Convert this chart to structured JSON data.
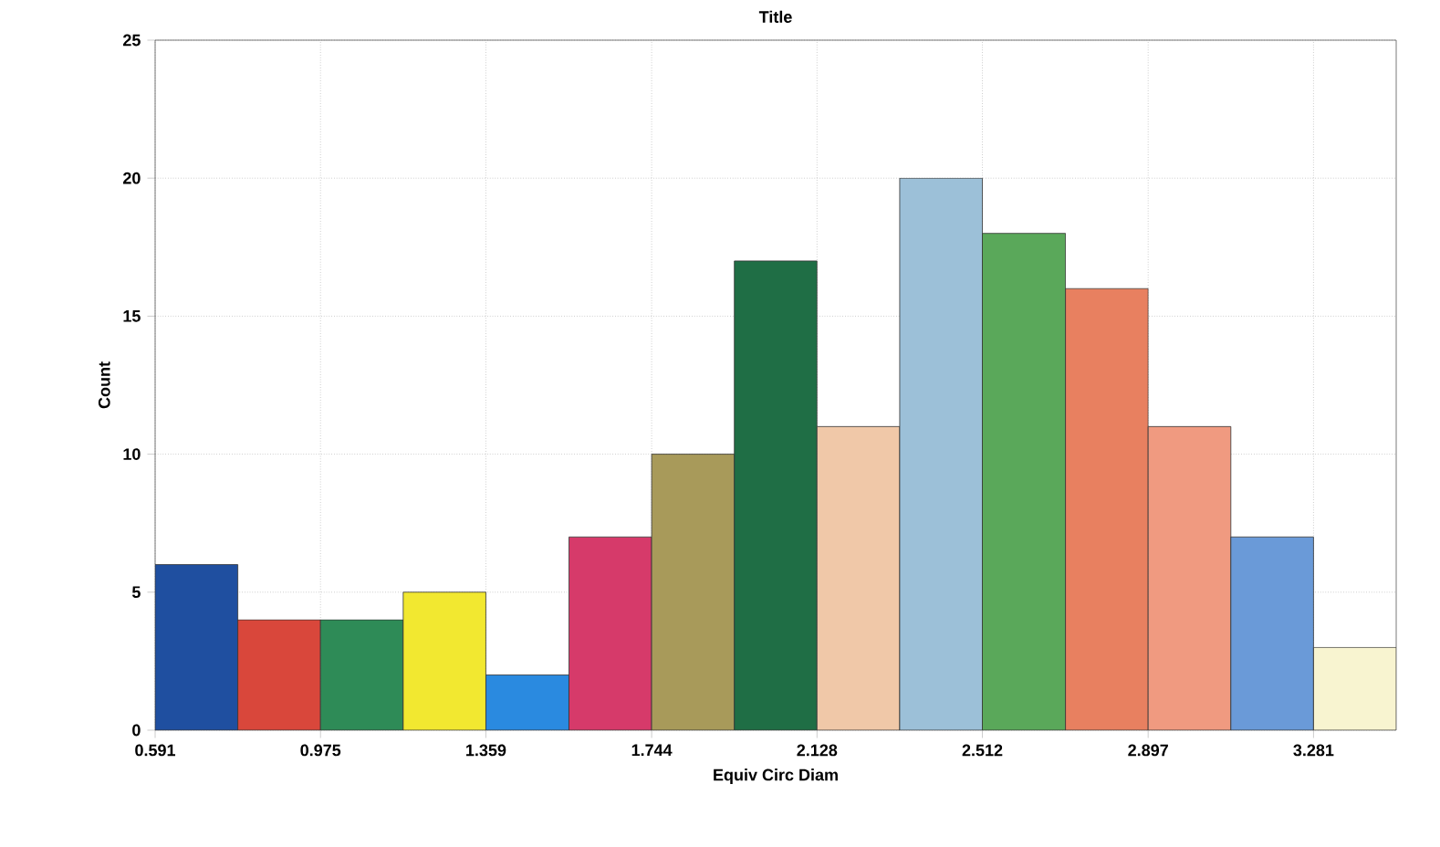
{
  "chart_data": {
    "type": "histogram",
    "title": "Title",
    "xlabel": "Equiv Circ Diam",
    "ylabel": "Count",
    "bins": [
      0.591,
      0.783,
      0.975,
      1.167,
      1.359,
      1.552,
      1.744,
      1.936,
      2.128,
      2.32,
      2.512,
      2.705,
      2.897,
      3.089,
      3.281,
      3.473
    ],
    "values": [
      6,
      4,
      4,
      5,
      2,
      7,
      10,
      17,
      11,
      20,
      18,
      16,
      11,
      7,
      3
    ],
    "colors": [
      "#1f4fa0",
      "#d9473b",
      "#2e8b57",
      "#f2e830",
      "#2a8ae0",
      "#d63a6a",
      "#a89a5a",
      "#1f6e45",
      "#f0c8a8",
      "#9cc0d8",
      "#5aa85a",
      "#e88060",
      "#f09a80",
      "#6a9ad8",
      "#f8f4d0"
    ],
    "xlim": [
      0.591,
      3.473
    ],
    "xticks": [
      0.591,
      0.975,
      1.359,
      1.744,
      2.128,
      2.512,
      2.897,
      3.281
    ],
    "ylim": [
      0,
      25
    ],
    "yticks": [
      0,
      5,
      10,
      15,
      20,
      25
    ],
    "grid": true
  }
}
